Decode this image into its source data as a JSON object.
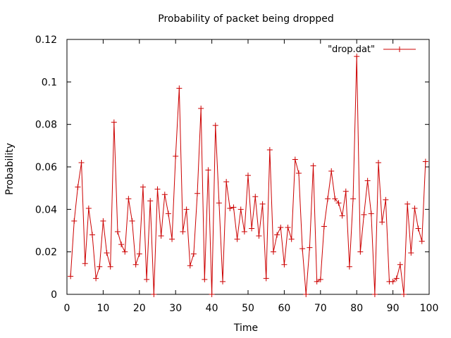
{
  "chart_data": {
    "type": "line",
    "title": "Probability of packet being dropped",
    "xlabel": "Time",
    "ylabel": "Probability",
    "xlim": [
      0,
      100
    ],
    "ylim": [
      0,
      0.12
    ],
    "xticks": [
      0,
      10,
      20,
      30,
      40,
      50,
      60,
      70,
      80,
      90,
      100
    ],
    "xtick_labels": [
      "0",
      "10",
      "20",
      "30",
      "40",
      "50",
      "60",
      "70",
      "80",
      "90",
      "100"
    ],
    "yticks": [
      0,
      0.02,
      0.04,
      0.06,
      0.08,
      0.1,
      0.12
    ],
    "ytick_labels": [
      "0",
      "0.02",
      "0.04",
      "0.06",
      "0.08",
      "0.1",
      "0.12"
    ],
    "legend_position": "top-right",
    "grid": false,
    "series": [
      {
        "name": "\"drop.dat\"",
        "color": "#cc0000",
        "marker": "plus",
        "x": [
          1,
          2,
          3,
          4,
          5,
          6,
          7,
          8,
          9,
          10,
          11,
          12,
          13,
          14,
          15,
          16,
          17,
          18,
          19,
          20,
          21,
          22,
          23,
          24,
          25,
          26,
          27,
          28,
          29,
          30,
          31,
          32,
          33,
          34,
          35,
          36,
          37,
          38,
          39,
          40,
          41,
          42,
          43,
          44,
          45,
          46,
          47,
          48,
          49,
          50,
          51,
          52,
          53,
          54,
          55,
          56,
          57,
          58,
          59,
          60,
          61,
          62,
          63,
          64,
          65,
          66,
          67,
          68,
          69,
          70,
          71,
          72,
          73,
          74,
          75,
          76,
          77,
          78,
          79,
          80,
          81,
          82,
          83,
          84,
          85,
          86,
          87,
          88,
          89,
          90,
          91,
          92,
          93,
          94,
          95,
          96,
          97,
          98,
          99
        ],
        "y": [
          0.0085,
          0.0345,
          0.0505,
          0.062,
          0.0145,
          0.0405,
          0.028,
          0.0075,
          0.013,
          0.0345,
          0.0195,
          0.013,
          0.081,
          0.0295,
          0.0235,
          0.02,
          0.045,
          0.0345,
          0.014,
          0.019,
          0.0505,
          0.007,
          0.044,
          0.0,
          0.0495,
          0.0275,
          0.047,
          0.038,
          0.026,
          0.065,
          0.097,
          0.0295,
          0.04,
          0.0135,
          0.019,
          0.0475,
          0.0875,
          0.007,
          0.0585,
          0.0,
          0.0795,
          0.043,
          0.006,
          0.053,
          0.0405,
          0.041,
          0.026,
          0.04,
          0.0295,
          0.056,
          0.031,
          0.046,
          0.0275,
          0.0425,
          0.0075,
          0.068,
          0.02,
          0.028,
          0.0315,
          0.014,
          0.0315,
          0.026,
          0.0635,
          0.057,
          0.0215,
          0.0,
          0.022,
          0.0605,
          0.006,
          0.007,
          0.032,
          0.045,
          0.058,
          0.045,
          0.043,
          0.037,
          0.0485,
          0.013,
          0.045,
          0.112,
          0.02,
          0.0375,
          0.0535,
          0.038,
          0.0,
          0.062,
          0.034,
          0.0445,
          0.006,
          0.006,
          0.0075,
          0.014,
          0.0,
          0.0425,
          0.0195,
          0.0405,
          0.031,
          0.025,
          0.0625
        ]
      }
    ]
  }
}
